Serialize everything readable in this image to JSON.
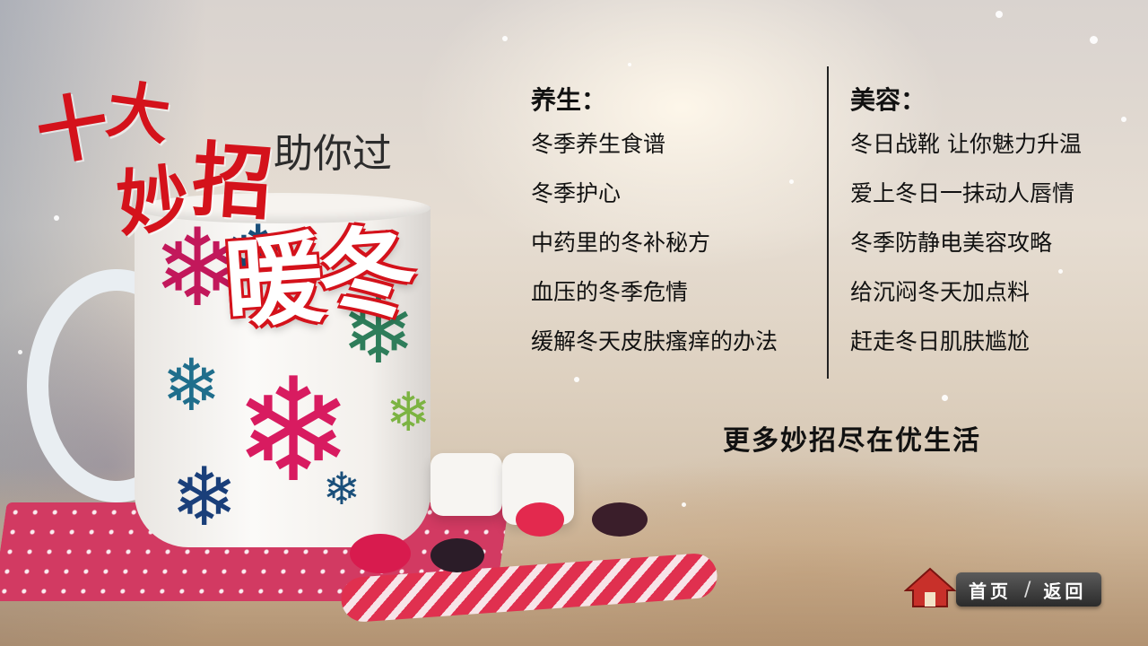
{
  "title": {
    "ten": "十",
    "big": "大",
    "miao": "妙",
    "zhao": "招",
    "helper": "助你过",
    "warm_winter": "暖冬"
  },
  "health": {
    "heading": "养生：",
    "items": [
      "冬季养生食谱",
      "冬季护心",
      "中药里的冬补秘方",
      "血压的冬季危情",
      "缓解冬天皮肤瘙痒的办法"
    ]
  },
  "beauty": {
    "heading": "美容：",
    "items": [
      "冬日战靴 让你魅力升温",
      "爱上冬日一抹动人唇情",
      "冬季防静电美容攻略",
      "给沉闷冬天加点料",
      "赶走冬日肌肤尴尬"
    ]
  },
  "more": "更多妙招尽在优生活",
  "nav": {
    "home_label": "首页",
    "back_label": "返回",
    "separator": "/"
  },
  "colors": {
    "title_red": "#d4121b",
    "text": "#111111",
    "nav_bg": "#3a3a3a",
    "home_icon": "#c8302a"
  }
}
